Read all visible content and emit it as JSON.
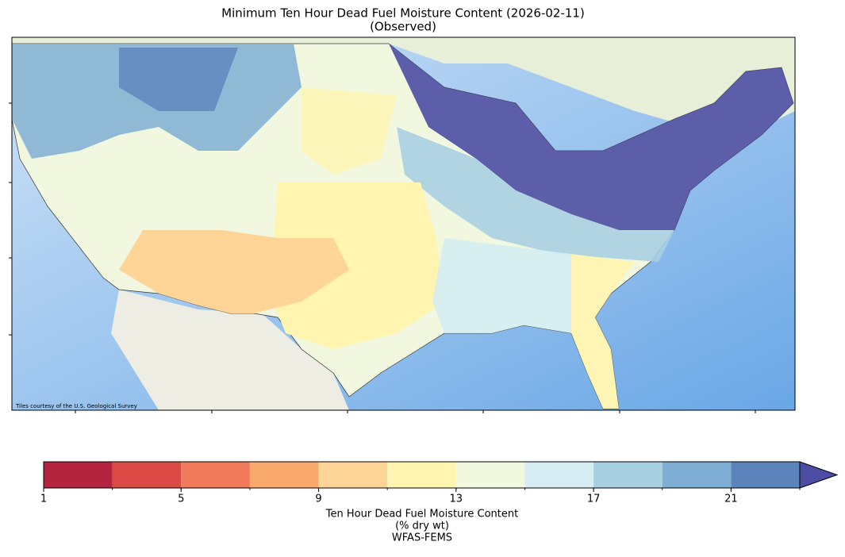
{
  "title": "Minimum Ten Hour Dead Fuel Moisture Content (2026-02-11)",
  "subtitle": "(Observed)",
  "map": {
    "attribution": "Tiles courtesy of the U.S. Geological Survey"
  },
  "colorbar": {
    "bins": [
      1,
      3,
      5,
      7,
      9,
      11,
      13,
      15,
      17,
      19,
      21,
      23
    ],
    "colors": [
      "#b5243f",
      "#dc4a46",
      "#f07a5a",
      "#fbaa6d",
      "#fed597",
      "#fff4b0",
      "#f1f8df",
      "#d5edf3",
      "#a8cfe2",
      "#7eaed4",
      "#5d85bd"
    ],
    "extend_color": "#4c4ca3",
    "ticks": [
      1,
      5,
      9,
      13,
      17,
      21
    ],
    "label": "Ten Hour Dead Fuel Moisture Content",
    "units": "(% dry wt)",
    "source": "WFAS-FEMS"
  }
}
